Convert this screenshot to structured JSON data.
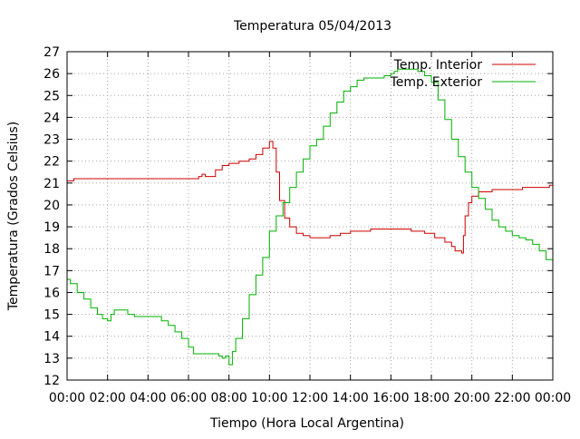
{
  "chart_data": {
    "type": "line",
    "title": "Temperatura 05/04/2013",
    "xlabel": "Tiempo (Hora Local Argentina)",
    "ylabel": "Temperatura (Grados Celsius)",
    "xlim": [
      "00:00",
      "24:00"
    ],
    "ylim": [
      12,
      27
    ],
    "x_ticks": [
      "00:00",
      "02:00",
      "04:00",
      "06:00",
      "08:00",
      "10:00",
      "12:00",
      "14:00",
      "16:00",
      "18:00",
      "20:00",
      "22:00",
      "00:00"
    ],
    "y_ticks": [
      "12",
      "13",
      "14",
      "15",
      "16",
      "17",
      "18",
      "19",
      "20",
      "21",
      "22",
      "23",
      "24",
      "25",
      "26",
      "27"
    ],
    "grid": true,
    "legend_position": "top-right",
    "series": [
      {
        "name": "Temp. Interior",
        "color": "#cc0000",
        "x": [
          "00:00",
          "00:20",
          "00:30",
          "06:00",
          "06:15",
          "06:30",
          "06:40",
          "06:50",
          "07:10",
          "07:20",
          "07:40",
          "08:00",
          "08:30",
          "09:00",
          "09:20",
          "09:40",
          "10:00",
          "10:05",
          "10:10",
          "10:20",
          "10:30",
          "10:45",
          "11:00",
          "11:20",
          "11:40",
          "12:00",
          "12:30",
          "13:00",
          "13:30",
          "14:00",
          "15:00",
          "16:00",
          "17:00",
          "17:40",
          "18:10",
          "18:40",
          "19:00",
          "19:10",
          "19:30",
          "19:35",
          "19:40",
          "19:50",
          "20:00",
          "20:20",
          "20:40",
          "21:00",
          "21:20",
          "22:00",
          "22:30",
          "23:00",
          "23:30",
          "23:50",
          "24:00"
        ],
        "y": [
          21.1,
          21.2,
          21.2,
          21.2,
          21.2,
          21.3,
          21.4,
          21.3,
          21.3,
          21.6,
          21.8,
          21.9,
          22.0,
          22.1,
          22.3,
          22.6,
          22.9,
          22.9,
          22.6,
          21.5,
          20.2,
          19.4,
          19.0,
          18.7,
          18.6,
          18.5,
          18.5,
          18.6,
          18.7,
          18.8,
          18.9,
          18.9,
          18.8,
          18.7,
          18.5,
          18.3,
          18.1,
          17.9,
          17.8,
          18.6,
          19.5,
          20.1,
          20.4,
          20.6,
          20.6,
          20.7,
          20.7,
          20.7,
          20.8,
          20.8,
          20.8,
          20.9,
          20.9
        ]
      },
      {
        "name": "Temp. Exterior",
        "color": "#00b000",
        "x": [
          "00:00",
          "00:10",
          "00:30",
          "00:50",
          "01:10",
          "01:30",
          "01:45",
          "02:00",
          "02:10",
          "02:20",
          "02:40",
          "03:00",
          "03:20",
          "03:40",
          "04:00",
          "04:20",
          "04:40",
          "05:00",
          "05:20",
          "05:40",
          "06:00",
          "06:15",
          "06:30",
          "07:00",
          "07:30",
          "07:40",
          "07:50",
          "08:00",
          "08:10",
          "08:20",
          "08:40",
          "09:00",
          "09:20",
          "09:40",
          "10:00",
          "10:20",
          "10:40",
          "11:00",
          "11:20",
          "11:40",
          "12:00",
          "12:20",
          "12:40",
          "13:00",
          "13:20",
          "13:40",
          "14:00",
          "14:20",
          "14:40",
          "15:00",
          "15:20",
          "15:40",
          "16:00",
          "16:10",
          "16:20",
          "16:40",
          "17:00",
          "17:20",
          "17:40",
          "18:00",
          "18:20",
          "18:40",
          "19:00",
          "19:20",
          "19:40",
          "20:00",
          "20:20",
          "20:40",
          "21:00",
          "21:20",
          "21:40",
          "22:00",
          "22:20",
          "22:40",
          "23:00",
          "23:20",
          "23:40",
          "24:00"
        ],
        "y": [
          16.6,
          16.4,
          16.0,
          15.7,
          15.3,
          15.0,
          14.8,
          14.7,
          15.0,
          15.2,
          15.2,
          15.0,
          14.9,
          14.9,
          14.9,
          14.9,
          14.7,
          14.5,
          14.2,
          13.9,
          13.5,
          13.2,
          13.2,
          13.2,
          13.1,
          13.0,
          13.1,
          12.7,
          13.3,
          13.9,
          14.8,
          15.9,
          16.8,
          17.6,
          18.8,
          19.5,
          20.1,
          20.8,
          21.5,
          22.1,
          22.7,
          23.0,
          23.6,
          24.2,
          24.7,
          25.2,
          25.4,
          25.7,
          25.8,
          25.8,
          25.8,
          25.9,
          26.0,
          26.1,
          26.2,
          26.2,
          26.2,
          26.1,
          25.9,
          25.6,
          24.8,
          23.9,
          23.0,
          22.2,
          21.5,
          20.8,
          20.3,
          19.8,
          19.3,
          19.0,
          18.8,
          18.6,
          18.5,
          18.4,
          18.2,
          17.9,
          17.5,
          17.3
        ]
      }
    ]
  }
}
